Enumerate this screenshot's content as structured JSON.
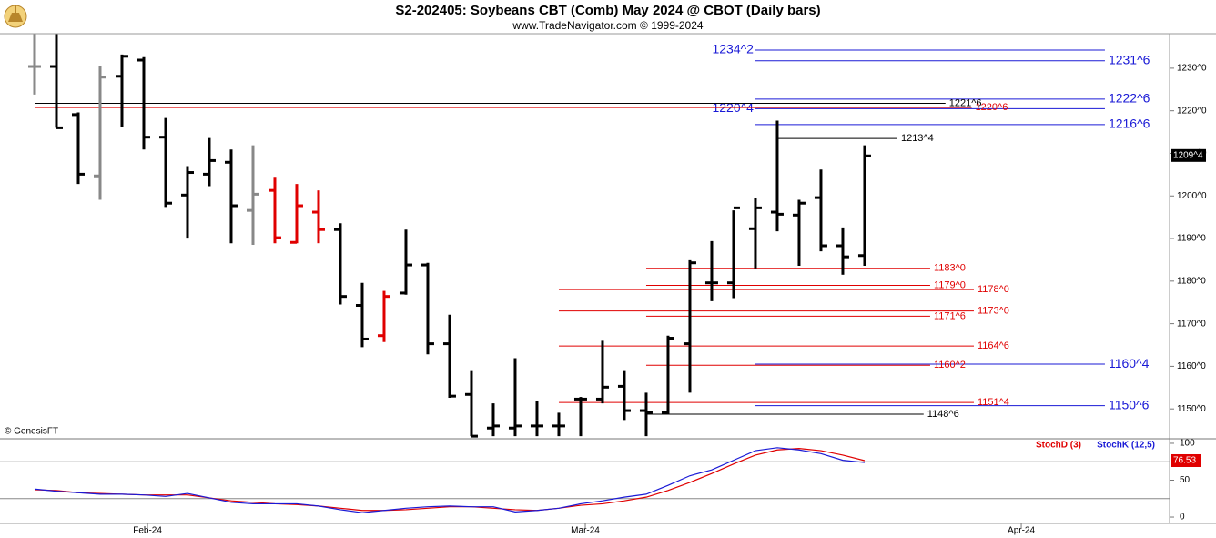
{
  "chart_data": [
    {
      "type": "ohlc",
      "title": "S2-202405:  Soybeans CBT (Comb) May 2024 @ CBOT  (Daily bars)",
      "subtitle": "www.TradeNavigator.com © 1999-2024",
      "source": "© GenesisFT",
      "x": [
        0,
        1,
        2,
        3,
        4,
        5,
        6,
        7,
        8,
        9,
        10,
        11,
        12,
        13,
        14,
        15,
        16,
        17,
        18,
        19,
        20,
        21,
        22,
        23,
        24,
        25,
        26,
        27,
        28,
        29,
        30,
        31,
        32,
        33,
        34,
        35,
        36,
        37,
        38
      ],
      "open": [
        1230.4,
        1230.4,
        1219.1,
        1204.7,
        1228.1,
        1231.9,
        1213.8,
        1200.2,
        1205.1,
        1207.9,
        1196.6,
        1201.3,
        1189.1,
        1196.2,
        1192.1,
        1174.3,
        1167.2,
        1177.2,
        1183.8,
        1165.3,
        1153.4,
        1145.5,
        1145.5,
        1146.0,
        1146.0,
        1152.3,
        1152.3,
        1155.3,
        1149.6,
        1149.1,
        1165.3,
        1179.6,
        1179.6,
        1192.3,
        1196.2,
        1195.5,
        1199.6,
        1188.3,
        1186.0
      ],
      "high": [
        1238.0,
        1238.0,
        1219.6,
        1230.4,
        1233.2,
        1232.6,
        1218.3,
        1207.0,
        1213.6,
        1210.9,
        1211.9,
        1204.5,
        1202.8,
        1201.3,
        1193.6,
        1179.6,
        1177.7,
        1192.1,
        1184.3,
        1172.1,
        1159.1,
        1151.3,
        1161.9,
        1151.9,
        1149.1,
        1152.8,
        1166.0,
        1159.1,
        1153.8,
        1167.2,
        1184.9,
        1189.4,
        1196.6,
        1199.4,
        1217.7,
        1199.1,
        1206.2,
        1192.6,
        1211.9
      ],
      "low": [
        1223.8,
        1216.0,
        1202.8,
        1199.1,
        1216.2,
        1210.9,
        1197.4,
        1190.2,
        1202.3,
        1188.9,
        1188.5,
        1188.9,
        1188.9,
        1188.9,
        1174.5,
        1164.5,
        1165.7,
        1176.8,
        1162.8,
        1152.6,
        1143.6,
        1143.6,
        1143.6,
        1143.6,
        1143.6,
        1143.6,
        1151.3,
        1147.4,
        1143.6,
        1148.7,
        1153.8,
        1175.3,
        1176.0,
        1183.0,
        1191.7,
        1183.6,
        1187.0,
        1181.5,
        1183.6
      ],
      "close": [
        1230.4,
        1216.0,
        1205.1,
        1227.9,
        1232.8,
        1213.8,
        1198.3,
        1205.5,
        1208.3,
        1197.7,
        1200.4,
        1190.2,
        1197.7,
        1192.1,
        1176.4,
        1166.4,
        1176.4,
        1183.8,
        1165.3,
        1153.0,
        1143.6,
        1146.0,
        1146.0,
        1146.0,
        1146.0,
        1152.3,
        1155.1,
        1149.6,
        1149.1,
        1166.6,
        1184.3,
        1179.6,
        1197.2,
        1197.2,
        1195.7,
        1198.3,
        1188.3,
        1185.7,
        1209.4
      ],
      "bar_colors": [
        "#888888",
        "#000000",
        "#000000",
        "#888888",
        "#000000",
        "#000000",
        "#000000",
        "#000000",
        "#000000",
        "#000000",
        "#888888",
        "#e00000",
        "#e00000",
        "#e00000",
        "#000000",
        "#000000",
        "#e00000",
        "#000000",
        "#000000",
        "#000000",
        "#000000",
        "#000000",
        "#000000",
        "#000000",
        "#000000",
        "#000000",
        "#000000",
        "#000000",
        "#000000",
        "#000000",
        "#000000",
        "#000000",
        "#000000",
        "#000000",
        "#000000",
        "#000000",
        "#000000",
        "#000000",
        "#000000"
      ],
      "xlim": [
        -1.583,
        51.96
      ],
      "xticks": [
        {
          "value": 5.17,
          "label": "Feb-24"
        },
        {
          "value": 25.21,
          "label": "Mar-24"
        },
        {
          "value": 45.17,
          "label": "Apr-24"
        }
      ],
      "ylim": [
        1143.2,
        1238.1
      ],
      "yticks": [
        {
          "value": 1150,
          "label": "1150^0"
        },
        {
          "value": 1160,
          "label": "1160^0"
        },
        {
          "value": 1170,
          "label": "1170^0"
        },
        {
          "value": 1180,
          "label": "1180^0"
        },
        {
          "value": 1190,
          "label": "1190^0"
        },
        {
          "value": 1200,
          "label": "1200^0"
        },
        {
          "value": 1210,
          "label": "1210^0"
        },
        {
          "value": 1220,
          "label": "1220^0"
        },
        {
          "value": 1230,
          "label": "1230^0"
        }
      ],
      "last_price": {
        "value": 1209.5,
        "label": "1209^4"
      },
      "levels": [
        {
          "value": 1234.25,
          "label": "1234^2",
          "color": "#1a1ad6",
          "from": 33,
          "to": 49,
          "label_side": "left"
        },
        {
          "value": 1231.75,
          "label": "1231^6",
          "color": "#1a1ad6",
          "from": 33,
          "to": 49,
          "label_side": "right"
        },
        {
          "value": 1222.75,
          "label": "1222^6",
          "color": "#1a1ad6",
          "from": 33,
          "to": 49,
          "label_side": "right"
        },
        {
          "value": 1220.5,
          "label": "1220^4",
          "color": "#1a1ad6",
          "from": 33,
          "to": 49,
          "label_side": "left"
        },
        {
          "value": 1216.75,
          "label": "1216^6",
          "color": "#1a1ad6",
          "from": 33,
          "to": 49,
          "label_side": "right"
        },
        {
          "value": 1160.5,
          "label": "1160^4",
          "color": "#1a1ad6",
          "from": 33,
          "to": 49,
          "label_side": "right"
        },
        {
          "value": 1150.75,
          "label": "1150^6",
          "color": "#1a1ad6",
          "from": 33,
          "to": 49,
          "label_side": "right"
        },
        {
          "value": 1221.75,
          "label": "1221^6",
          "color": "#000000",
          "from": 0,
          "to": 41.7,
          "label_side": "right"
        },
        {
          "value": 1213.5,
          "label": "1213^4",
          "color": "#000000",
          "from": 34,
          "to": 39.5,
          "label_side": "right"
        },
        {
          "value": 1148.75,
          "label": "1148^6",
          "color": "#000000",
          "from": 28,
          "to": 40.7,
          "label_side": "right"
        },
        {
          "value": 1220.75,
          "label": "1220^6",
          "color": "#e00000",
          "from": 0,
          "to": 42.9,
          "label_side": "right"
        },
        {
          "value": 1183,
          "label": "1183^0",
          "color": "#e00000",
          "from": 28,
          "to": 41,
          "label_side": "right"
        },
        {
          "value": 1179,
          "label": "1179^0",
          "color": "#e00000",
          "from": 28,
          "to": 41,
          "label_side": "right"
        },
        {
          "value": 1178,
          "label": "1178^0",
          "color": "#e00000",
          "from": 24,
          "to": 43,
          "label_side": "right"
        },
        {
          "value": 1173,
          "label": "1173^0",
          "color": "#e00000",
          "from": 24,
          "to": 43,
          "label_side": "right"
        },
        {
          "value": 1171.75,
          "label": "1171^6",
          "color": "#e00000",
          "from": 28,
          "to": 41,
          "label_side": "right"
        },
        {
          "value": 1164.75,
          "label": "1164^6",
          "color": "#e00000",
          "from": 24,
          "to": 43,
          "label_side": "right"
        },
        {
          "value": 1160.25,
          "label": "1160^2",
          "color": "#e00000",
          "from": 28,
          "to": 41,
          "label_side": "right"
        },
        {
          "value": 1151.5,
          "label": "1151^4",
          "color": "#e00000",
          "from": 24,
          "to": 43,
          "label_side": "right"
        }
      ]
    },
    {
      "type": "line",
      "x": [
        0,
        1,
        2,
        3,
        4,
        5,
        6,
        7,
        8,
        9,
        10,
        11,
        12,
        13,
        14,
        15,
        16,
        17,
        18,
        19,
        20,
        21,
        22,
        23,
        24,
        25,
        26,
        27,
        28,
        29,
        30,
        31,
        32,
        33,
        34,
        35,
        36,
        37,
        38
      ],
      "xlim": [
        -1.583,
        51.96
      ],
      "ylim": [
        -8.6,
        104.9
      ],
      "yticks": [
        0,
        50,
        100
      ],
      "reference_lines": [
        25,
        75
      ],
      "series": [
        {
          "name": "StochD (3)",
          "color": "#e00000",
          "values": [
            37,
            36,
            33,
            32,
            31,
            30,
            30,
            30,
            26,
            22,
            20,
            18,
            17,
            15,
            12,
            9,
            9,
            10,
            12,
            14,
            14,
            12,
            10,
            9,
            12,
            16,
            18,
            22,
            27,
            36,
            47,
            59,
            72,
            84,
            91,
            93,
            90,
            84,
            76.53
          ]
        },
        {
          "name": "StochK (12,5)",
          "color": "#1a1ad6",
          "values": [
            38,
            35,
            33,
            31,
            31,
            30,
            28,
            32,
            26,
            20,
            18,
            18,
            18,
            15,
            10,
            6,
            9,
            12,
            14,
            15,
            14,
            14,
            7,
            9,
            12,
            18,
            22,
            27,
            31,
            43,
            56,
            64,
            77,
            90,
            94,
            91,
            86,
            77,
            74
          ]
        }
      ]
    }
  ]
}
